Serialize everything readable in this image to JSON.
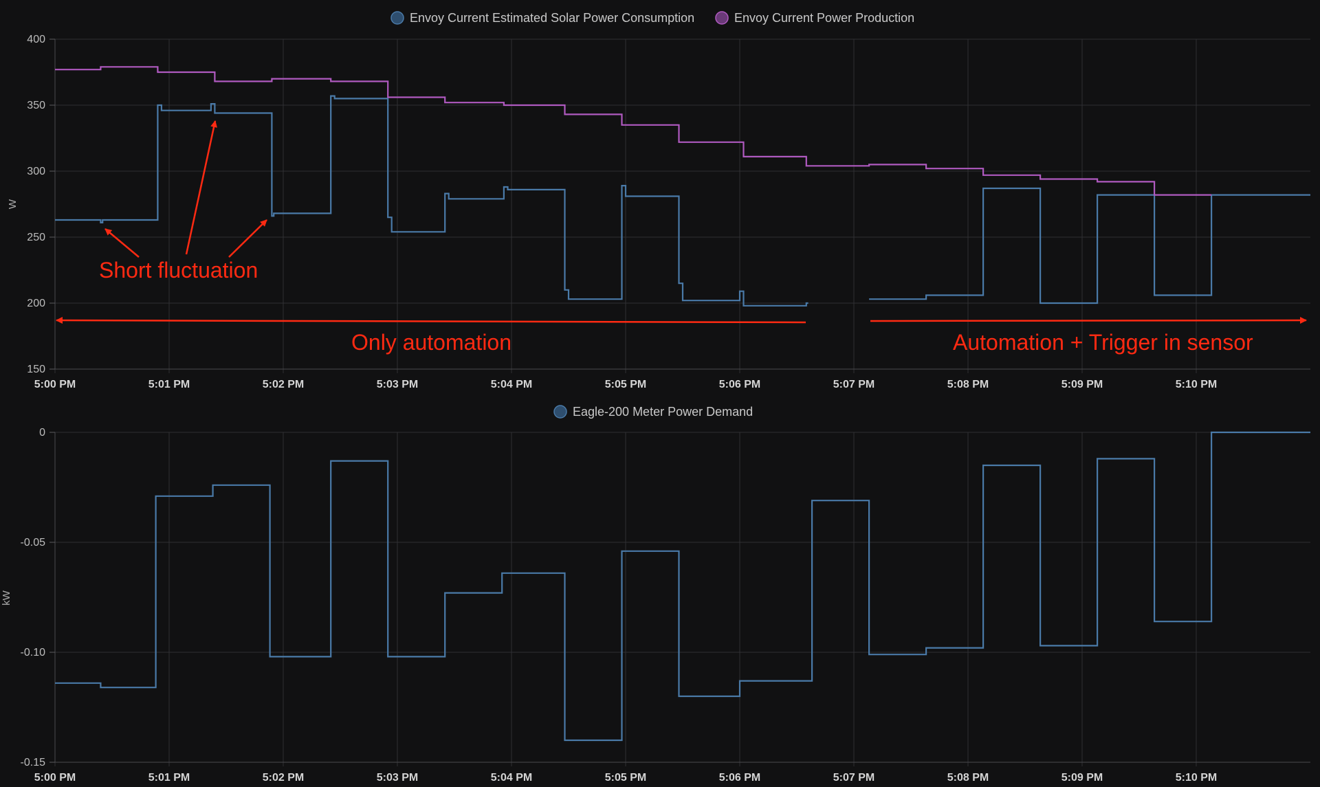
{
  "chart_data": [
    {
      "type": "line",
      "step": true,
      "ylabel": "W",
      "ylim": [
        150,
        400
      ],
      "yticks": [
        "400",
        "350",
        "300",
        "250",
        "200",
        "150"
      ],
      "xlim": [
        "5:00 PM",
        "5:11 PM"
      ],
      "xticks": [
        "5:00 PM",
        "5:01 PM",
        "5:02 PM",
        "5:03 PM",
        "5:04 PM",
        "5:05 PM",
        "5:06 PM",
        "5:07 PM",
        "5:08 PM",
        "5:09 PM",
        "5:10 PM"
      ],
      "grid": true,
      "legend_position": "top-center",
      "series": [
        {
          "name": "Envoy Current Estimated Solar Power Consumption",
          "color": "#4a7aa8",
          "legend_fill": "#2e4e6e",
          "segments": [
            [
              [
                "5:00:00 PM",
                263
              ],
              [
                "5:00:24 PM",
                261
              ],
              [
                "5:00:25 PM",
                263
              ],
              [
                "5:00:54 PM",
                350
              ],
              [
                "5:00:56 PM",
                346
              ],
              [
                "5:01:22 PM",
                351
              ],
              [
                "5:01:24 PM",
                344
              ],
              [
                "5:01:54 PM",
                266
              ],
              [
                "5:01:55 PM",
                268
              ],
              [
                "5:02:25 PM",
                357
              ],
              [
                "5:02:27 PM",
                355
              ],
              [
                "5:02:55 PM",
                265
              ],
              [
                "5:02:57 PM",
                254
              ],
              [
                "5:03:25 PM",
                283
              ],
              [
                "5:03:27 PM",
                279
              ],
              [
                "5:03:56 PM",
                288
              ],
              [
                "5:03:58 PM",
                286
              ],
              [
                "5:04:28 PM",
                210
              ],
              [
                "5:04:30 PM",
                203
              ],
              [
                "5:04:58 PM",
                289
              ],
              [
                "5:05:00 PM",
                281
              ],
              [
                "5:05:28 PM",
                215
              ],
              [
                "5:05:30 PM",
                202
              ],
              [
                "5:06:00 PM",
                209
              ],
              [
                "5:06:02 PM",
                198
              ],
              [
                "5:06:35 PM",
                200
              ],
              [
                "5:06:36 PM",
                200
              ]
            ],
            [
              [
                "5:07:08 PM",
                203
              ],
              [
                "5:07:38 PM",
                206
              ],
              [
                "5:08:08 PM",
                287
              ],
              [
                "5:08:38 PM",
                200
              ],
              [
                "5:09:08 PM",
                282
              ],
              [
                "5:09:38 PM",
                206
              ],
              [
                "5:10:08 PM",
                282
              ],
              [
                "5:11:00 PM",
                282
              ]
            ]
          ]
        },
        {
          "name": "Envoy Current Power Production",
          "color": "#b05ac0",
          "legend_fill": "#6a3a78",
          "segments": [
            [
              [
                "5:00:00 PM",
                377
              ],
              [
                "5:00:24 PM",
                379
              ],
              [
                "5:00:54 PM",
                375
              ],
              [
                "5:01:24 PM",
                368
              ],
              [
                "5:01:54 PM",
                370
              ],
              [
                "5:02:25 PM",
                368
              ],
              [
                "5:02:55 PM",
                356
              ],
              [
                "5:03:25 PM",
                352
              ],
              [
                "5:03:56 PM",
                350
              ],
              [
                "5:04:28 PM",
                343
              ],
              [
                "5:04:58 PM",
                335
              ],
              [
                "5:05:28 PM",
                322
              ],
              [
                "5:06:02 PM",
                311
              ],
              [
                "5:06:35 PM",
                304
              ],
              [
                "5:07:08 PM",
                305
              ],
              [
                "5:07:38 PM",
                302
              ],
              [
                "5:08:08 PM",
                297
              ],
              [
                "5:08:38 PM",
                294
              ],
              [
                "5:09:08 PM",
                292
              ],
              [
                "5:09:38 PM",
                282
              ],
              [
                "5:10:08 PM",
                282
              ]
            ]
          ]
        }
      ],
      "annotations": [
        {
          "text": "Short fluctuation"
        },
        {
          "text": "Only automation"
        },
        {
          "text": "Automation + Trigger in sensor"
        }
      ]
    },
    {
      "type": "line",
      "step": true,
      "ylabel": "kW",
      "ylim": [
        -0.15,
        0
      ],
      "yticks": [
        "0",
        "-0.05",
        "-0.10",
        "-0.15"
      ],
      "xlim": [
        "5:00 PM",
        "5:11 PM"
      ],
      "xticks": [
        "5:00 PM",
        "5:01 PM",
        "5:02 PM",
        "5:03 PM",
        "5:04 PM",
        "5:05 PM",
        "5:06 PM",
        "5:07 PM",
        "5:08 PM",
        "5:09 PM",
        "5:10 PM"
      ],
      "grid": true,
      "legend_position": "top-center",
      "series": [
        {
          "name": "Eagle-200 Meter Power Demand",
          "color": "#4a7aa8",
          "legend_fill": "#2e4e6e",
          "segments": [
            [
              [
                "5:00:00 PM",
                -0.114
              ],
              [
                "5:00:24 PM",
                -0.116
              ],
              [
                "5:00:53 PM",
                -0.029
              ],
              [
                "5:01:23 PM",
                -0.024
              ],
              [
                "5:01:53 PM",
                -0.102
              ],
              [
                "5:02:25 PM",
                -0.013
              ],
              [
                "5:02:55 PM",
                -0.102
              ],
              [
                "5:03:25 PM",
                -0.073
              ],
              [
                "5:03:55 PM",
                -0.064
              ],
              [
                "5:04:28 PM",
                -0.14
              ],
              [
                "5:04:58 PM",
                -0.054
              ],
              [
                "5:05:28 PM",
                -0.12
              ],
              [
                "5:06:00 PM",
                -0.113
              ],
              [
                "5:06:38 PM",
                -0.031
              ],
              [
                "5:07:08 PM",
                -0.101
              ],
              [
                "5:07:38 PM",
                -0.098
              ],
              [
                "5:08:08 PM",
                -0.015
              ],
              [
                "5:08:38 PM",
                -0.097
              ],
              [
                "5:09:08 PM",
                -0.012
              ],
              [
                "5:09:38 PM",
                -0.086
              ],
              [
                "5:10:08 PM",
                0.0
              ],
              [
                "5:11:00 PM",
                0.0
              ]
            ]
          ]
        }
      ]
    }
  ]
}
